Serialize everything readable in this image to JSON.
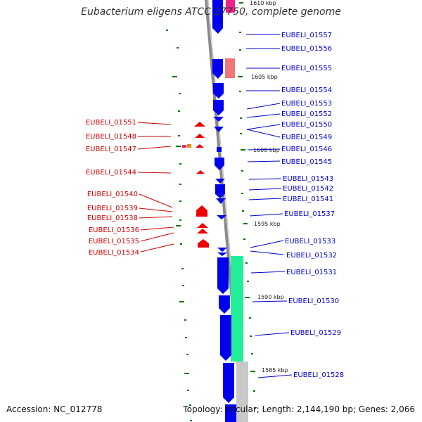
{
  "title": "Eubacterium eligens ATCC 27750, complete genome",
  "footer": {
    "accession": "Accession: NC_012778",
    "topology": "Topology: circular; Length: 2,144,190 bp; Genes: 2,066"
  },
  "colors": {
    "forward_gene": "#0000ee",
    "reverse_gene": "#ee0000",
    "forward_label": "#0000cc",
    "reverse_label": "#cc0000",
    "tick": "#007700",
    "rna_pink": "#ee2288",
    "rna_salmon": "#ee7777",
    "rna_green": "#22ee99",
    "rna_grey": "#c8c8c8"
  },
  "position_labels": [
    "1610 kbp",
    "1605 kbp",
    "1600 kbp",
    "1595 kbp",
    "1590 kbp",
    "1585 kbp"
  ],
  "forward_labels": [
    "EUBELI_01557",
    "EUBELI_01556",
    "EUBELI_01555",
    "EUBELI_01554",
    "EUBELI_01553",
    "EUBELI_01552",
    "EUBELI_01550",
    "EUBELI_01549",
    "EUBELI_01546",
    "EUBELI_01545",
    "EUBELI_01543",
    "EUBELI_01542",
    "EUBELI_01541",
    "EUBELI_01537",
    "EUBELI_01533",
    "EUBELI_01532",
    "EUBELI_01531",
    "EUBELI_01530",
    "EUBELI_01529",
    "EUBELI_01528"
  ],
  "reverse_labels": [
    "EUBELI_01551",
    "EUBELI_01548",
    "EUBELI_01547",
    "EUBELI_01544",
    "EUBELI_01540",
    "EUBELI_01539",
    "EUBELI_01538",
    "EUBELI_01536",
    "EUBELI_01535",
    "EUBELI_01534"
  ]
}
